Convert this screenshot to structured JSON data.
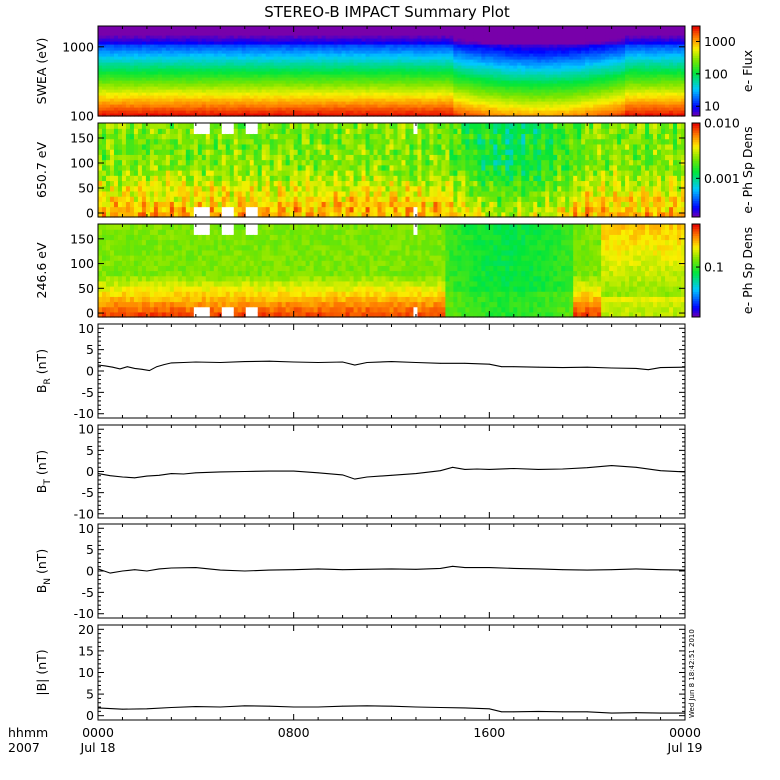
{
  "title": "STEREO-B IMPACT Summary Plot",
  "timestamp": "Wed Jun  8 18:42:51 2010",
  "x_axis": {
    "row1_label": "hhmm",
    "row2_label": "2007",
    "ticks": [
      {
        "hours": 0,
        "label": "0000",
        "date": "Jul 18"
      },
      {
        "hours": 8,
        "label": "0800",
        "date": ""
      },
      {
        "hours": 16,
        "label": "1600",
        "date": ""
      },
      {
        "hours": 24,
        "label": "0000",
        "date": "Jul 19"
      }
    ],
    "range_hours": [
      0,
      24
    ]
  },
  "chart_data": [
    {
      "type": "heatmap",
      "ylabel": "SWEA (eV)",
      "y_scale": "log",
      "ylim": [
        100,
        2000
      ],
      "y_ticks": [
        {
          "value": 100,
          "label": "100"
        },
        {
          "value": 1000,
          "label": "1000"
        }
      ],
      "colorbar": {
        "label": "e- Flux",
        "scale": "log",
        "range": [
          5,
          3000
        ],
        "ticks": [
          {
            "value": 10,
            "label": "10"
          },
          {
            "value": 100,
            "label": "100"
          },
          {
            "value": 1000,
            "label": "1000"
          }
        ]
      },
      "gaps": []
    },
    {
      "type": "heatmap",
      "ylabel": "650.7 eV",
      "y_scale": "linear",
      "ylim": [
        -8,
        180
      ],
      "y_ticks": [
        {
          "value": 0,
          "label": "0"
        },
        {
          "value": 50,
          "label": "50"
        },
        {
          "value": 100,
          "label": "100"
        },
        {
          "value": 150,
          "label": "150"
        }
      ],
      "colorbar": {
        "label": "e- Ph Sp Dens",
        "scale": "log",
        "range": [
          0.0002,
          0.01
        ],
        "ticks": [
          {
            "value": 0.001,
            "label": "0.001"
          },
          {
            "value": 0.01,
            "label": "0.010"
          }
        ]
      },
      "gaps": [
        [
          4.0,
          4.6
        ],
        [
          5.0,
          5.5
        ],
        [
          6.1,
          6.6
        ],
        [
          12.9,
          13.1
        ]
      ]
    },
    {
      "type": "heatmap",
      "ylabel": "246.6 eV",
      "y_scale": "linear",
      "ylim": [
        -8,
        180
      ],
      "y_ticks": [
        {
          "value": 0,
          "label": "0"
        },
        {
          "value": 50,
          "label": "50"
        },
        {
          "value": 100,
          "label": "100"
        },
        {
          "value": 150,
          "label": "150"
        }
      ],
      "colorbar": {
        "label": "e- Ph Sp Dens",
        "scale": "log",
        "range": [
          0.02,
          0.4
        ],
        "ticks": [
          {
            "value": 0.1,
            "label": "0.1"
          }
        ]
      },
      "gaps": [
        [
          4.0,
          4.6
        ],
        [
          5.0,
          5.5
        ],
        [
          6.1,
          6.6
        ],
        [
          12.9,
          13.1
        ]
      ]
    },
    {
      "type": "line",
      "ylabel": "B_R (nT)",
      "ylim": [
        -11,
        11
      ],
      "y_ticks": [
        {
          "value": -10,
          "label": "-10"
        },
        {
          "value": -5,
          "label": "-5"
        },
        {
          "value": 0,
          "label": "0"
        },
        {
          "value": 5,
          "label": "5"
        },
        {
          "value": 10,
          "label": "10"
        }
      ],
      "x": [
        0,
        0.3,
        0.6,
        0.9,
        1.2,
        1.5,
        1.8,
        2.1,
        2.4,
        2.7,
        3,
        3.5,
        4,
        5,
        6,
        7,
        8,
        9,
        10,
        10.5,
        11,
        12,
        13,
        14,
        15,
        16,
        16.5,
        17,
        18,
        19,
        20,
        21,
        22,
        22.5,
        23,
        24
      ],
      "y": [
        1.4,
        1.2,
        0.9,
        0.5,
        1.0,
        0.6,
        0.4,
        0.1,
        1.0,
        1.5,
        1.9,
        2.0,
        2.1,
        2.0,
        2.2,
        2.3,
        2.1,
        2.0,
        2.1,
        1.4,
        2.0,
        2.2,
        2.0,
        1.8,
        1.8,
        1.6,
        1.0,
        1.0,
        0.9,
        0.8,
        0.9,
        0.7,
        0.6,
        0.3,
        0.8,
        0.9
      ]
    },
    {
      "type": "line",
      "ylabel": "B_T (nT)",
      "ylim": [
        -11,
        11
      ],
      "y_ticks": [
        {
          "value": -10,
          "label": "-10"
        },
        {
          "value": -5,
          "label": "-5"
        },
        {
          "value": 0,
          "label": "0"
        },
        {
          "value": 5,
          "label": "5"
        },
        {
          "value": 10,
          "label": "10"
        }
      ],
      "x": [
        0,
        0.5,
        1,
        1.5,
        2,
        2.5,
        3,
        3.5,
        4,
        5,
        6,
        7,
        8,
        9,
        10,
        10.5,
        11,
        12,
        13,
        14,
        14.5,
        15,
        15.5,
        16,
        17,
        18,
        19,
        20,
        21,
        22,
        23,
        24
      ],
      "y": [
        -0.5,
        -1.0,
        -1.3,
        -1.5,
        -1.1,
        -0.9,
        -0.5,
        -0.6,
        -0.3,
        -0.1,
        0.0,
        0.1,
        0.1,
        -0.3,
        -0.8,
        -1.8,
        -1.3,
        -0.9,
        -0.5,
        0.2,
        1.0,
        0.5,
        0.6,
        0.5,
        0.7,
        0.5,
        0.6,
        0.9,
        1.4,
        1.0,
        0.2,
        -0.1
      ]
    },
    {
      "type": "line",
      "ylabel": "B_N (nT)",
      "ylim": [
        -11,
        11
      ],
      "y_ticks": [
        {
          "value": -10,
          "label": "-10"
        },
        {
          "value": -5,
          "label": "-5"
        },
        {
          "value": 0,
          "label": "0"
        },
        {
          "value": 5,
          "label": "5"
        },
        {
          "value": 10,
          "label": "10"
        }
      ],
      "x": [
        0,
        0.5,
        1,
        1.5,
        2,
        2.5,
        3,
        4,
        5,
        6,
        7,
        8,
        9,
        10,
        11,
        12,
        13,
        14,
        14.5,
        15,
        16,
        17,
        18,
        19,
        20,
        21,
        22,
        23,
        24
      ],
      "y": [
        0.5,
        -0.5,
        0.0,
        0.3,
        0.0,
        0.5,
        0.7,
        0.8,
        0.2,
        0.0,
        0.2,
        0.3,
        0.5,
        0.3,
        0.4,
        0.5,
        0.4,
        0.6,
        1.1,
        0.8,
        0.8,
        0.6,
        0.5,
        0.3,
        0.2,
        0.3,
        0.5,
        0.3,
        0.2
      ]
    },
    {
      "type": "line",
      "ylabel": "|B| (nT)",
      "ylim": [
        -1,
        21
      ],
      "y_ticks": [
        {
          "value": 0,
          "label": "0"
        },
        {
          "value": 5,
          "label": "5"
        },
        {
          "value": 10,
          "label": "10"
        },
        {
          "value": 15,
          "label": "15"
        },
        {
          "value": 20,
          "label": "20"
        }
      ],
      "x": [
        0,
        1,
        2,
        3,
        4,
        5,
        6,
        7,
        8,
        9,
        10,
        11,
        12,
        13,
        14,
        15,
        16,
        16.5,
        17,
        18,
        19,
        20,
        21,
        22,
        23,
        24
      ],
      "y": [
        1.8,
        1.5,
        1.6,
        1.9,
        2.1,
        2.0,
        2.3,
        2.2,
        2.0,
        2.0,
        2.2,
        2.3,
        2.2,
        2.0,
        1.9,
        1.8,
        1.6,
        0.9,
        0.9,
        1.0,
        0.9,
        0.9,
        0.6,
        0.7,
        0.6,
        0.6
      ]
    }
  ]
}
